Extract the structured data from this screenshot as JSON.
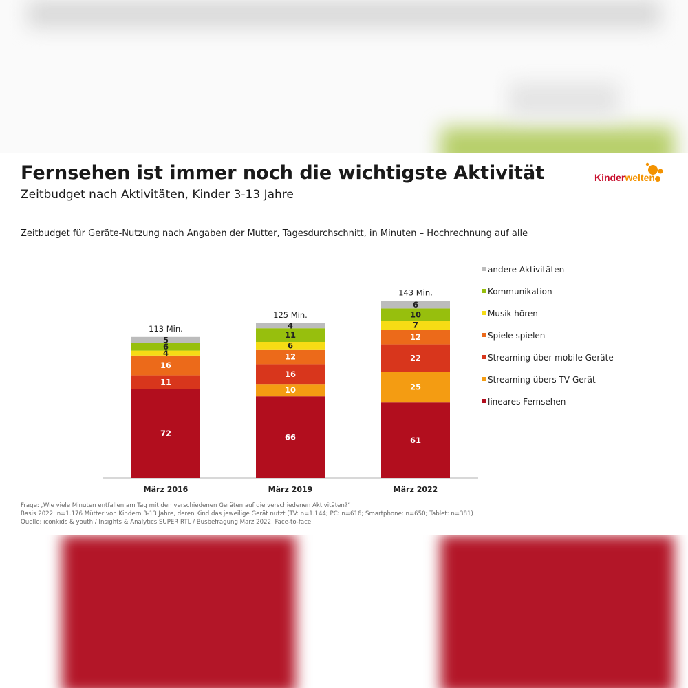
{
  "page": {
    "title": "Fernsehen ist immer noch die wichtigste Aktivität",
    "subtitle": "Zeitbudget nach Aktivitäten, Kinder 3-13 Jahre",
    "chart_title": "Zeitbudget für Geräte-Nutzung nach Angaben der Mutter, Tagesdurchschnitt, in Minuten – Hochrechnung auf alle",
    "logo": {
      "part1": "Kinder",
      "part2": "welten"
    },
    "notes": [
      "Frage: „Wie viele Minuten entfallen am Tag mit den verschiedenen Geräten auf die verschiedenen Aktivitäten?“",
      "Basis 2022: n=1.176 Mütter von Kindern 3-13 Jahre, deren Kind das jeweilige Gerät nutzt (TV: n=1.144; PC: n=616; Smartphone: n=650; Tablet: n=381)",
      "Quelle: iconkids & youth / Insights & Analytics SUPER RTL / Busbefragung März 2022, Face-to-face"
    ]
  },
  "chart_data": {
    "type": "bar",
    "stacked": true,
    "categories": [
      "März 2016",
      "März 2019",
      "März 2022"
    ],
    "totals": [
      "113 Min.",
      "125 Min.",
      "143 Min."
    ],
    "series": [
      {
        "name": "lineares Fernsehen",
        "color": "#b20e1e",
        "values": [
          72,
          66,
          61
        ]
      },
      {
        "name": "Streaming übers TV-Gerät",
        "color": "#f49c12",
        "values": [
          0,
          10,
          25
        ]
      },
      {
        "name": "Streaming über mobile Geräte",
        "color": "#d8361c",
        "values": [
          11,
          16,
          22
        ]
      },
      {
        "name": "Spiele spielen",
        "color": "#ec6a1a",
        "values": [
          16,
          12,
          12
        ]
      },
      {
        "name": "Musik hören",
        "color": "#f6dc15",
        "values": [
          4,
          6,
          7
        ]
      },
      {
        "name": "Kommunikation",
        "color": "#97bf0d",
        "values": [
          6,
          11,
          10
        ]
      },
      {
        "name": "andere Aktivitäten",
        "color": "#bcbcbc",
        "values": [
          5,
          4,
          6
        ]
      }
    ],
    "legend_order": [
      "andere Aktivitäten",
      "Kommunikation",
      "Musik hören",
      "Spiele spielen",
      "Streaming über mobile Geräte",
      "Streaming übers TV-Gerät",
      "lineares Fernsehen"
    ],
    "legend_position": "right",
    "ylim": [
      0,
      143
    ],
    "grid": false
  }
}
